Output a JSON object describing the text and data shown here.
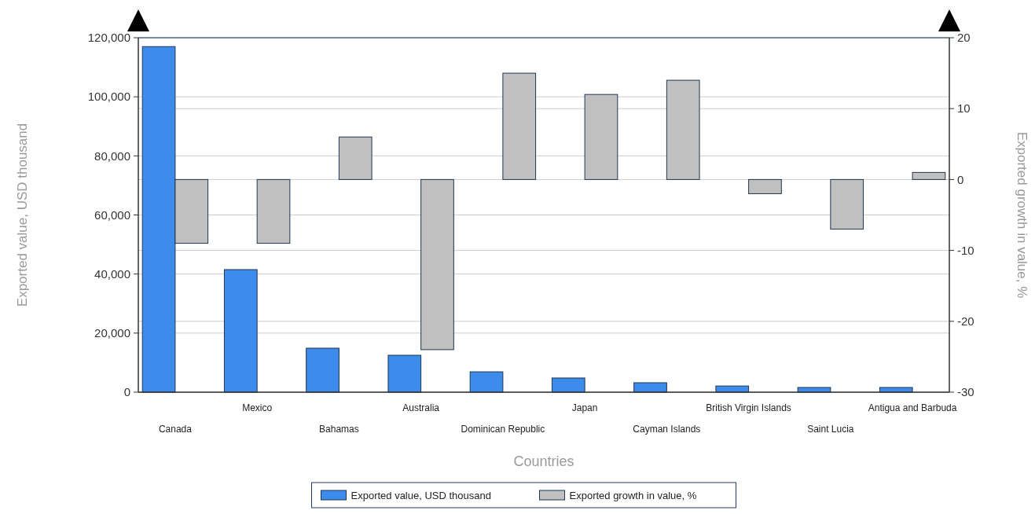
{
  "chart_data": {
    "type": "bar",
    "xlabel": "Countries",
    "ylabel": "Exported value, USD thousand",
    "y2label": "Exported growth in value, %",
    "categories": [
      "Canada",
      "Mexico",
      "Bahamas",
      "Australia",
      "Dominican Republic",
      "Japan",
      "Cayman Islands",
      "British Virgin Islands",
      "Saint Lucia",
      "Antigua and Barbuda"
    ],
    "series": [
      {
        "name": "Exported value, USD thousand",
        "color": "#3d8bea",
        "values": [
          117000,
          41500,
          14900,
          12500,
          6900,
          4800,
          3200,
          2100,
          1600,
          1600
        ]
      },
      {
        "name": "Exported growth in value, %",
        "color": "#c0c0c0",
        "axis": "y2",
        "values": [
          -9,
          -9,
          6,
          -24,
          15,
          12,
          14,
          -2,
          -7,
          1
        ]
      }
    ],
    "ylim": [
      0,
      120000
    ],
    "yticks": [
      {
        "value": 0,
        "label": "0"
      },
      {
        "value": 20000,
        "label": "20,000"
      },
      {
        "value": 40000,
        "label": "40,000"
      },
      {
        "value": 60000,
        "label": "60,000"
      },
      {
        "value": 80000,
        "label": "80,000"
      },
      {
        "value": 100000,
        "label": "100,000"
      },
      {
        "value": 120000,
        "label": "120,000"
      }
    ],
    "y2lim": [
      -30,
      20
    ],
    "y2ticks": [
      -30,
      -20,
      -10,
      0,
      10,
      20
    ],
    "grid": true,
    "legend": "bottom"
  }
}
